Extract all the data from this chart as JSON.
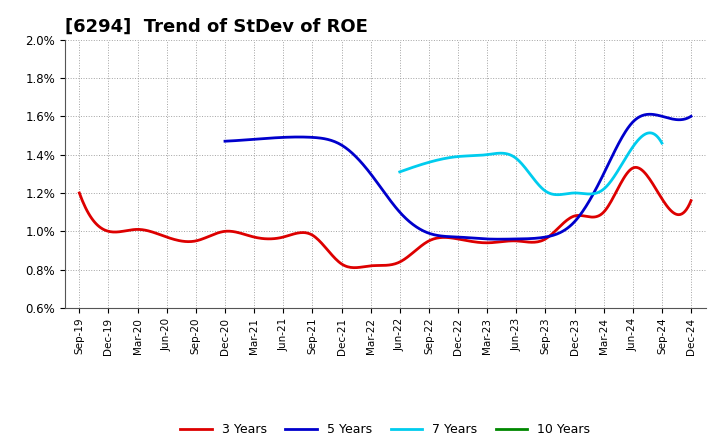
{
  "title": "[6294]  Trend of StDev of ROE",
  "title_fontsize": 13,
  "ylim": [
    0.006,
    0.02
  ],
  "yticks": [
    0.006,
    0.008,
    0.01,
    0.012,
    0.014,
    0.016,
    0.018,
    0.02
  ],
  "ytick_labels": [
    "0.6%",
    "0.8%",
    "1.0%",
    "1.2%",
    "1.4%",
    "1.6%",
    "1.8%",
    "2.0%"
  ],
  "background_color": "#ffffff",
  "plot_background": "#ffffff",
  "grid_color": "#999999",
  "xtick_labels": [
    "Sep-19",
    "Dec-19",
    "Mar-20",
    "Jun-20",
    "Sep-20",
    "Dec-20",
    "Mar-21",
    "Jun-21",
    "Sep-21",
    "Dec-21",
    "Mar-22",
    "Jun-22",
    "Sep-22",
    "Dec-22",
    "Mar-23",
    "Jun-23",
    "Sep-23",
    "Dec-23",
    "Mar-24",
    "Jun-24",
    "Sep-24",
    "Dec-24"
  ],
  "series": {
    "3 Years": {
      "color": "#dd0000",
      "values": [
        1.2,
        1.0,
        1.01,
        0.97,
        0.95,
        1.0,
        0.97,
        0.97,
        0.98,
        0.83,
        0.82,
        0.84,
        0.95,
        0.96,
        0.94,
        0.95,
        0.96,
        1.08,
        1.1,
        1.33,
        1.17,
        1.16
      ]
    },
    "5 Years": {
      "color": "#0000cc",
      "values": [
        null,
        null,
        null,
        null,
        null,
        1.47,
        1.48,
        1.49,
        1.49,
        1.45,
        1.3,
        1.1,
        0.99,
        0.97,
        0.96,
        0.96,
        0.97,
        1.05,
        1.3,
        1.57,
        1.6,
        1.6
      ]
    },
    "7 Years": {
      "color": "#00ccee",
      "values": [
        null,
        null,
        null,
        null,
        null,
        null,
        null,
        null,
        null,
        null,
        null,
        1.31,
        1.36,
        1.39,
        1.4,
        1.38,
        1.21,
        1.2,
        1.22,
        1.44,
        1.46,
        null
      ]
    },
    "10 Years": {
      "color": "#008800",
      "values": [
        null,
        null,
        null,
        null,
        null,
        null,
        null,
        null,
        null,
        null,
        null,
        null,
        null,
        null,
        null,
        null,
        null,
        null,
        null,
        null,
        null,
        null
      ]
    }
  }
}
